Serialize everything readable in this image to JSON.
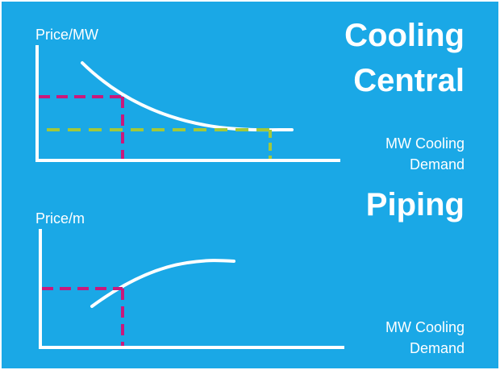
{
  "cooling_central": {
    "title_line1": "Cooling",
    "title_line2": "Central",
    "y_label": "Price/MW",
    "x_label_line1": "MW Cooling",
    "x_label_line2": "Demand"
  },
  "piping": {
    "title": "Piping",
    "y_label": "Price/m",
    "x_label_line1": "MW Cooling",
    "x_label_line2": "Demand"
  },
  "colors": {
    "background": "#1aa8e6",
    "axis": "#ffffff",
    "curve": "#ffffff",
    "guide_magenta": "#c9197c",
    "guide_green": "#a3c83a"
  }
}
